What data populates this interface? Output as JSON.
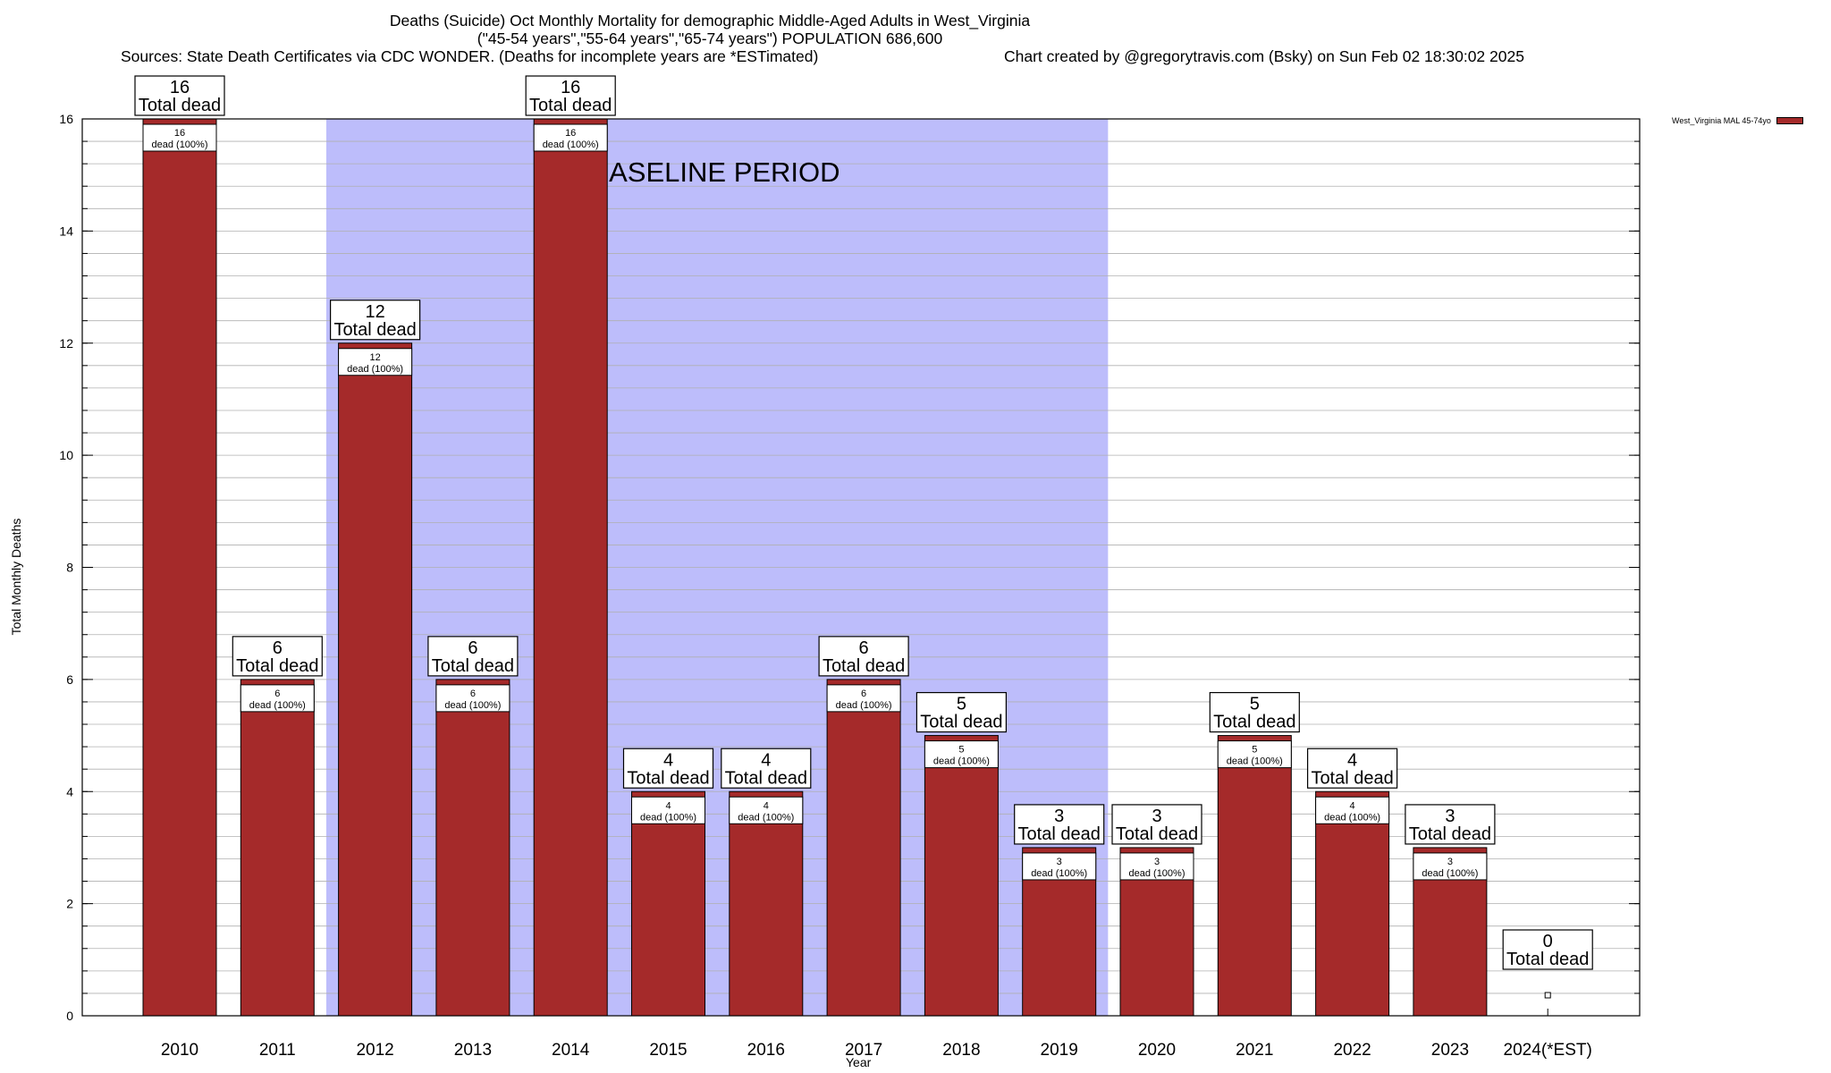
{
  "chart_data": {
    "type": "bar",
    "title_line1": "Deaths (Suicide) Oct Monthly Mortality for demographic Middle-Aged Adults in West_Virginia",
    "title_line2": "(\"45-54 years\",\"55-64 years\",\"65-74 years\") POPULATION 686,600",
    "title_line3": "Sources: State Death Certificates via CDC WONDER. (Deaths for incomplete years are *ESTimated)",
    "title_line4": "Chart created by @gregorytravis.com (Bsky) on Sun Feb 02 18:30:02 2025",
    "xlabel": "Year",
    "ylabel": "Total Monthly Deaths",
    "ylim": [
      0,
      16
    ],
    "yticks": [
      0,
      2,
      4,
      6,
      8,
      10,
      12,
      14,
      16
    ],
    "categories": [
      "2010",
      "2011",
      "2012",
      "2013",
      "2014",
      "2015",
      "2016",
      "2017",
      "2018",
      "2019",
      "2020",
      "2021",
      "2022",
      "2023",
      "2024(*EST)"
    ],
    "series": [
      {
        "name": "West_Virginia MAL 45-74yo",
        "values": [
          16,
          6,
          12,
          6,
          16,
          4,
          4,
          6,
          5,
          3,
          3,
          5,
          4,
          3,
          0
        ],
        "color": "#a52a2a"
      }
    ],
    "top_label_suffix": "Total dead",
    "inner_label_suffix": "dead (100%)",
    "baseline_period": {
      "label": "BASELINE PERIOD",
      "from": "2012",
      "to": "2019",
      "color": "#bdbdfb"
    },
    "grid": true,
    "legend_position": "top-right"
  }
}
